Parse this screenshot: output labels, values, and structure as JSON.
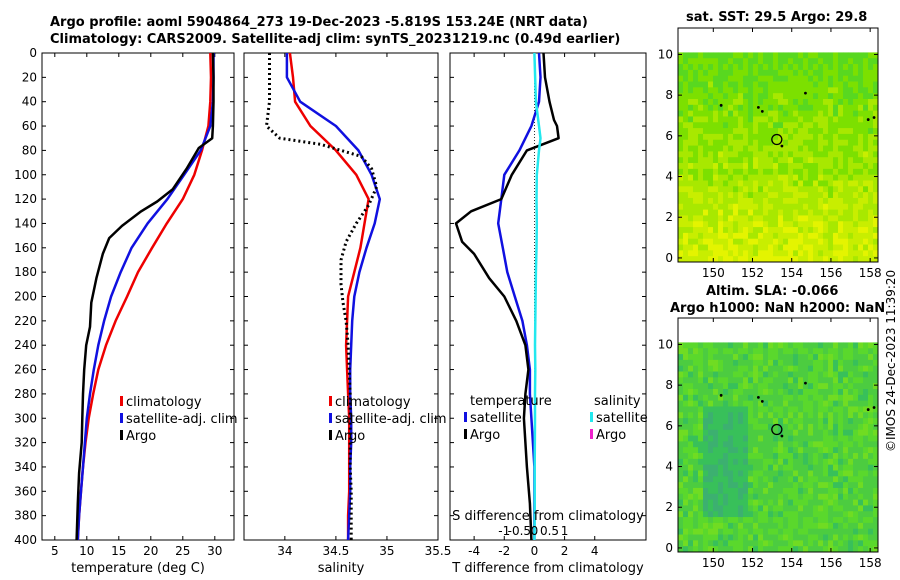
{
  "figure": {
    "title_line1": "Argo profile: aoml 5904864_273 19-Dec-2023 -5.819S 153.24E (NRT data)",
    "title_line2": "Climatology: CARS2009. Satellite-adj clim: synTS_20231219.nc (0.49d earlier)",
    "timestamp": "©IMOS 24-Dec-2023 11:39:20",
    "colors": {
      "red": "#ee0000",
      "blue": "#1010e0",
      "black": "#000000",
      "cyan": "#22e8ee",
      "magenta": "#ee22cc"
    }
  },
  "chart_data": [
    {
      "type": "line",
      "id": "temperature",
      "xlabel": "temperature (deg C)",
      "ylabel": "",
      "xlim": [
        3,
        33
      ],
      "ylim": [
        0,
        400
      ],
      "xticks": [
        5,
        10,
        15,
        20,
        25,
        30
      ],
      "yticks": [
        0,
        20,
        40,
        60,
        80,
        100,
        120,
        140,
        160,
        180,
        200,
        220,
        240,
        260,
        280,
        300,
        320,
        340,
        360,
        380,
        400
      ],
      "legend": [
        "climatology",
        "satellite-adj. clim",
        "Argo"
      ],
      "series": [
        {
          "name": "climatology",
          "color": "red",
          "points": [
            [
              29.3,
              0
            ],
            [
              29.4,
              20
            ],
            [
              29.3,
              40
            ],
            [
              29,
              60
            ],
            [
              28,
              80
            ],
            [
              26.8,
              100
            ],
            [
              25,
              120
            ],
            [
              22.5,
              140
            ],
            [
              20.2,
              160
            ],
            [
              18,
              180
            ],
            [
              16.3,
              200
            ],
            [
              14.5,
              220
            ],
            [
              13,
              240
            ],
            [
              11.8,
              260
            ],
            [
              11,
              280
            ],
            [
              10.3,
              300
            ],
            [
              9.8,
              320
            ],
            [
              9.4,
              340
            ],
            [
              9.1,
              360
            ],
            [
              8.8,
              380
            ],
            [
              8.6,
              400
            ]
          ]
        },
        {
          "name": "satellite-adj. clim",
          "color": "blue",
          "points": [
            [
              29.8,
              0
            ],
            [
              29.8,
              20
            ],
            [
              29.7,
              40
            ],
            [
              29.3,
              60
            ],
            [
              27.8,
              80
            ],
            [
              25.2,
              100
            ],
            [
              22.6,
              120
            ],
            [
              19.5,
              140
            ],
            [
              17,
              160
            ],
            [
              15.3,
              180
            ],
            [
              13.8,
              200
            ],
            [
              12.7,
              220
            ],
            [
              11.8,
              240
            ],
            [
              11.1,
              260
            ],
            [
              10.5,
              280
            ],
            [
              10,
              300
            ],
            [
              9.7,
              320
            ],
            [
              9.4,
              340
            ],
            [
              9.1,
              360
            ],
            [
              8.8,
              380
            ],
            [
              8.6,
              400
            ]
          ]
        },
        {
          "name": "Argo",
          "color": "black",
          "points": [
            [
              29.7,
              0
            ],
            [
              29.8,
              20
            ],
            [
              29.8,
              40
            ],
            [
              29.7,
              60
            ],
            [
              29.6,
              70
            ],
            [
              27.5,
              78
            ],
            [
              25.6,
              95
            ],
            [
              23.4,
              112
            ],
            [
              21,
              122
            ],
            [
              18.5,
              130
            ],
            [
              15.5,
              142
            ],
            [
              13.5,
              152
            ],
            [
              12.5,
              165
            ],
            [
              11.5,
              185
            ],
            [
              10.7,
              205
            ],
            [
              10.5,
              225
            ],
            [
              9.9,
              240
            ],
            [
              9.6,
              260
            ],
            [
              9.4,
              280
            ],
            [
              9.3,
              300
            ],
            [
              9.2,
              320
            ],
            [
              8.8,
              345
            ],
            [
              8.6,
              370
            ],
            [
              8.4,
              400
            ]
          ]
        }
      ]
    },
    {
      "type": "line",
      "id": "salinity",
      "xlabel": "salinity",
      "ylabel": "",
      "xlim": [
        33.6,
        35.5
      ],
      "ylim": [
        0,
        400
      ],
      "xticks": [
        34,
        34.5,
        35,
        35.5
      ],
      "xticklabels": [
        "34",
        "34.5",
        "35",
        "35.5"
      ],
      "legend": [
        "climatology",
        "satellite-adj. clim",
        "Argo"
      ],
      "series": [
        {
          "name": "climatology",
          "color": "red",
          "points": [
            [
              34.05,
              0
            ],
            [
              34.08,
              20
            ],
            [
              34.1,
              40
            ],
            [
              34.25,
              60
            ],
            [
              34.5,
              80
            ],
            [
              34.7,
              100
            ],
            [
              34.82,
              120
            ],
            [
              34.78,
              140
            ],
            [
              34.74,
              160
            ],
            [
              34.68,
              180
            ],
            [
              34.62,
              200
            ],
            [
              34.61,
              220
            ],
            [
              34.6,
              240
            ],
            [
              34.61,
              260
            ],
            [
              34.62,
              280
            ],
            [
              34.63,
              300
            ],
            [
              34.63,
              320
            ],
            [
              34.63,
              340
            ],
            [
              34.63,
              360
            ],
            [
              34.62,
              380
            ],
            [
              34.62,
              400
            ]
          ]
        },
        {
          "name": "satellite-adj. clim",
          "color": "blue",
          "points": [
            [
              34.02,
              0
            ],
            [
              34.02,
              20
            ],
            [
              34.15,
              40
            ],
            [
              34.5,
              60
            ],
            [
              34.72,
              80
            ],
            [
              34.85,
              100
            ],
            [
              34.93,
              120
            ],
            [
              34.88,
              140
            ],
            [
              34.8,
              160
            ],
            [
              34.73,
              180
            ],
            [
              34.68,
              200
            ],
            [
              34.66,
              220
            ],
            [
              34.65,
              240
            ],
            [
              34.64,
              260
            ],
            [
              34.64,
              280
            ],
            [
              34.65,
              300
            ],
            [
              34.65,
              320
            ],
            [
              34.64,
              340
            ],
            [
              34.64,
              360
            ],
            [
              34.63,
              380
            ],
            [
              34.62,
              400
            ]
          ]
        },
        {
          "name": "Argo",
          "color": "black",
          "dotted": true,
          "points": [
            [
              33.85,
              0
            ],
            [
              33.85,
              20
            ],
            [
              33.85,
              40
            ],
            [
              33.82,
              60
            ],
            [
              33.95,
              70
            ],
            [
              34.35,
              75
            ],
            [
              34.75,
              85
            ],
            [
              34.85,
              95
            ],
            [
              34.9,
              110
            ],
            [
              34.82,
              125
            ],
            [
              34.7,
              140
            ],
            [
              34.6,
              155
            ],
            [
              34.55,
              170
            ],
            [
              34.55,
              190
            ],
            [
              34.57,
              205
            ],
            [
              34.6,
              220
            ],
            [
              34.62,
              240
            ],
            [
              34.63,
              260
            ],
            [
              34.64,
              280
            ],
            [
              34.64,
              300
            ],
            [
              34.64,
              320
            ],
            [
              34.64,
              340
            ],
            [
              34.65,
              360
            ],
            [
              34.65,
              380
            ],
            [
              34.65,
              400
            ]
          ]
        }
      ]
    },
    {
      "type": "line",
      "id": "difference",
      "xlabel": "T difference from climatology",
      "secondary_xlabel": "S difference from climatology",
      "xlim": [
        -5.6,
        7.4
      ],
      "ylim": [
        0,
        400
      ],
      "xticks": [
        -4,
        -2,
        0,
        2,
        4
      ],
      "secondary_xticks": [
        -1,
        -0.5,
        0,
        0.5,
        1
      ],
      "secondary_xticklabels": [
        "-1",
        "-0.5",
        "0",
        "0.5",
        "1"
      ],
      "legend_left_title": "temperature",
      "legend_right_title": "salinity",
      "legend_left": [
        "satellite",
        "Argo"
      ],
      "legend_right": [
        "satellite",
        "Argo"
      ],
      "series": [
        {
          "name": "T satellite",
          "color": "blue",
          "points": [
            [
              0.3,
              0
            ],
            [
              0.4,
              20
            ],
            [
              0.3,
              40
            ],
            [
              -0.2,
              60
            ],
            [
              -1,
              80
            ],
            [
              -2,
              100
            ],
            [
              -2.2,
              120
            ],
            [
              -2.4,
              140
            ],
            [
              -2.1,
              160
            ],
            [
              -1.8,
              180
            ],
            [
              -1.3,
              200
            ],
            [
              -0.8,
              220
            ],
            [
              -0.5,
              240
            ],
            [
              -0.3,
              260
            ],
            [
              -0.3,
              280
            ],
            [
              -0.2,
              300
            ],
            [
              -0.1,
              320
            ],
            [
              0,
              340
            ],
            [
              0,
              360
            ],
            [
              0,
              380
            ],
            [
              0,
              400
            ]
          ]
        },
        {
          "name": "T Argo",
          "color": "black",
          "points": [
            [
              0.6,
              0
            ],
            [
              0.7,
              20
            ],
            [
              1,
              40
            ],
            [
              1.3,
              55
            ],
            [
              1.5,
              60
            ],
            [
              1.6,
              70
            ],
            [
              -0.5,
              80
            ],
            [
              -1.5,
              100
            ],
            [
              -2.2,
              120
            ],
            [
              -4.2,
              130
            ],
            [
              -5.2,
              140
            ],
            [
              -4.8,
              155
            ],
            [
              -4,
              165
            ],
            [
              -3,
              185
            ],
            [
              -2,
              200
            ],
            [
              -1.2,
              220
            ],
            [
              -0.6,
              240
            ],
            [
              -0.4,
              260
            ],
            [
              -0.6,
              280
            ],
            [
              -0.7,
              300
            ],
            [
              -0.5,
              340
            ],
            [
              -0.3,
              370
            ],
            [
              -0.2,
              400
            ]
          ]
        },
        {
          "name": "S satellite",
          "color": "cyan",
          "points": [
            [
              0,
              0
            ],
            [
              0.05,
              40
            ],
            [
              0.15,
              60
            ],
            [
              0.2,
              70
            ],
            [
              0.15,
              80
            ],
            [
              0.08,
              100
            ],
            [
              0.07,
              120
            ],
            [
              0.08,
              140
            ],
            [
              0.07,
              160
            ],
            [
              0.05,
              180
            ],
            [
              0.04,
              200
            ],
            [
              0.03,
              220
            ],
            [
              0.02,
              240
            ],
            [
              0.03,
              260
            ],
            [
              0.02,
              280
            ],
            [
              0.02,
              300
            ],
            [
              0.01,
              340
            ],
            [
              0.01,
              380
            ],
            [
              0,
              400
            ]
          ]
        },
        {
          "name": "S Argo",
          "color": "magenta",
          "points": []
        }
      ]
    },
    {
      "type": "heatmap",
      "id": "sst",
      "title": "sat. SST: 29.5 Argo: 29.8",
      "xlim": [
        148.2,
        158.4
      ],
      "ylim": [
        -0.2,
        11.3
      ],
      "xticks": [
        150,
        152,
        154,
        156,
        158
      ],
      "yticks": [
        0,
        2,
        4,
        6,
        8,
        10
      ],
      "data_top": 10.1,
      "profile_location": [
        153.24,
        5.82
      ],
      "colors": [
        "#7ce000",
        "#58d820",
        "#a8e800",
        "#c8ee00",
        "#e4f400"
      ]
    },
    {
      "type": "heatmap",
      "id": "sla",
      "title_line1": "Altim. SLA: -0.066",
      "title_line2": "Argo h1000: NaN h2000: NaN",
      "xlim": [
        148.2,
        158.4
      ],
      "ylim": [
        -0.2,
        11.3
      ],
      "xticks": [
        150,
        152,
        154,
        156,
        158
      ],
      "yticks": [
        0,
        2,
        4,
        6,
        8,
        10
      ],
      "data_top": 10.1,
      "profile_location": [
        153.24,
        5.82
      ],
      "colors": [
        "#4ccc40",
        "#38c05a",
        "#5ad82c",
        "#70dc22",
        "#3cb070"
      ]
    }
  ]
}
